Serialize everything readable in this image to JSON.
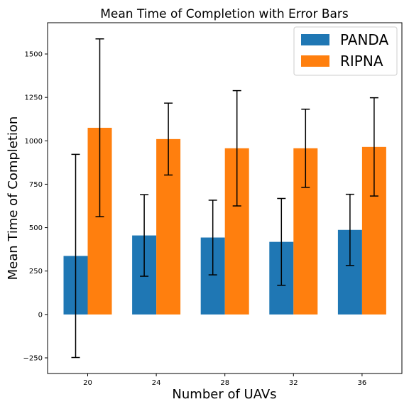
{
  "chart_data": {
    "type": "bar",
    "title": "Mean Time of Completion with Error Bars",
    "xlabel": "Number of UAVs",
    "ylabel": "Mean Time of Completion",
    "categories": [
      "20",
      "24",
      "28",
      "32",
      "36"
    ],
    "ylim": [
      -340,
      1680
    ],
    "yticks": [
      -250,
      0,
      250,
      500,
      750,
      1000,
      1250,
      1500
    ],
    "ytick_labels": [
      "−250",
      "0",
      "250",
      "500",
      "750",
      "1000",
      "1250",
      "1500"
    ],
    "grid": false,
    "legend_position": "top-right",
    "series": [
      {
        "name": "PANDA",
        "color": "#1f77b4",
        "values": [
          337,
          455,
          443,
          418,
          487
        ],
        "error": [
          585,
          235,
          215,
          250,
          205
        ]
      },
      {
        "name": "RIPNA",
        "color": "#ff7f0e",
        "values": [
          1075,
          1010,
          957,
          957,
          965
        ],
        "error": [
          512,
          207,
          332,
          225,
          283
        ]
      }
    ]
  }
}
